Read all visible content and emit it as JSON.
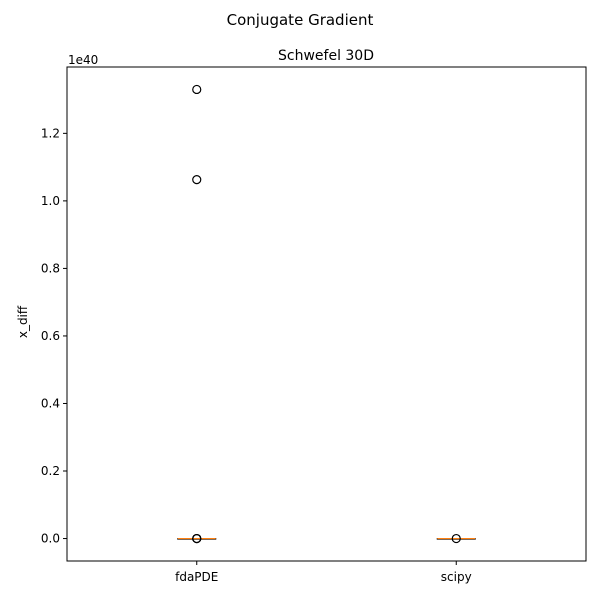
{
  "chart_data": {
    "type": "box",
    "suptitle": "Conjugate Gradient",
    "title": "Schwefel 30D",
    "xlabel": "",
    "ylabel": "x_diff",
    "y_offset_text": "1e40",
    "ylim": [
      -0.0665,
      1.3965
    ],
    "yticks": [
      0.0,
      0.2,
      0.4,
      0.6,
      0.8,
      1.0,
      1.2
    ],
    "ytick_labels": [
      "0.0",
      "0.2",
      "0.4",
      "0.6",
      "0.8",
      "1.0",
      "1.2"
    ],
    "categories": [
      "fdaPDE",
      "scipy"
    ],
    "boxes": [
      {
        "name": "fdaPDE",
        "q1": 0.0,
        "median": 0.0,
        "q3": 0.0,
        "whisker_low": 0.0,
        "whisker_high": 0.0,
        "outliers": [
          1.33,
          1.063,
          0.0,
          0.0,
          0.0
        ]
      },
      {
        "name": "scipy",
        "q1": 0.0,
        "median": 0.0,
        "q3": 0.0,
        "whisker_low": 0.0,
        "whisker_high": 0.0,
        "outliers": [
          0.0
        ]
      }
    ],
    "median_color": "#ff7f0e",
    "box_color": "#000000",
    "grid": false
  }
}
